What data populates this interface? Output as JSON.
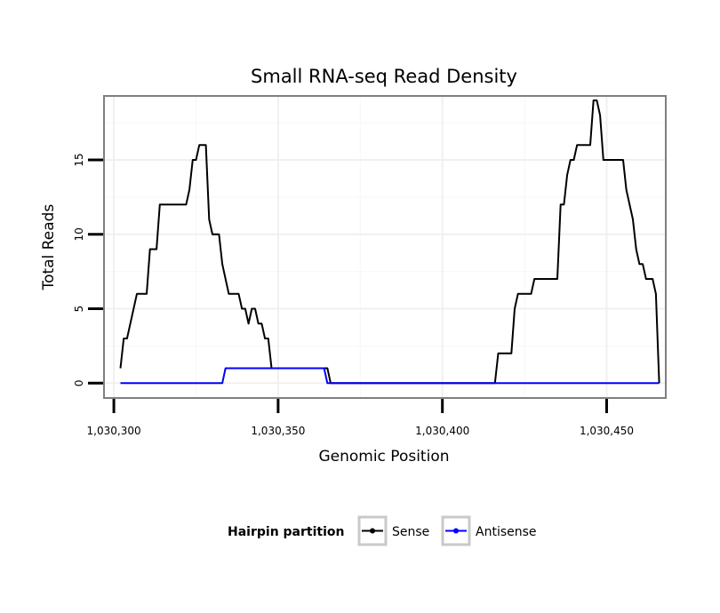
{
  "chart_data": {
    "type": "line",
    "title": "Small RNA-seq Read Density",
    "xlabel": "Genomic Position",
    "ylabel": "Total Reads",
    "xlim": [
      1030297,
      1030468
    ],
    "ylim": [
      -1,
      19.3
    ],
    "x_ticks": [
      1030300,
      1030350,
      1030400,
      1030450
    ],
    "x_tick_labels": [
      "1,030,300",
      "1,030,350",
      "1,030,400",
      "1,030,450"
    ],
    "y_ticks": [
      0,
      5,
      10,
      15
    ],
    "y_tick_labels": [
      "0",
      "5",
      "10",
      "15"
    ],
    "grid": true,
    "legend": {
      "title": "Hairpin partition",
      "position": "bottom",
      "entries": [
        {
          "name": "Sense",
          "color": "#000000"
        },
        {
          "name": "Antisense",
          "color": "#0000ff"
        }
      ]
    },
    "series": [
      {
        "name": "Sense",
        "color": "#000000",
        "points": [
          [
            1030302,
            1
          ],
          [
            1030303,
            3
          ],
          [
            1030304,
            3
          ],
          [
            1030305,
            4
          ],
          [
            1030306,
            5
          ],
          [
            1030307,
            6
          ],
          [
            1030310,
            6
          ],
          [
            1030311,
            9
          ],
          [
            1030313,
            9
          ],
          [
            1030314,
            12
          ],
          [
            1030322,
            12
          ],
          [
            1030323,
            13
          ],
          [
            1030324,
            15
          ],
          [
            1030325,
            15
          ],
          [
            1030326,
            16
          ],
          [
            1030328,
            16
          ],
          [
            1030329,
            11
          ],
          [
            1030330,
            10
          ],
          [
            1030332,
            10
          ],
          [
            1030333,
            8
          ],
          [
            1030335,
            6
          ],
          [
            1030338,
            6
          ],
          [
            1030339,
            5
          ],
          [
            1030340,
            5
          ],
          [
            1030341,
            4
          ],
          [
            1030342,
            5
          ],
          [
            1030343,
            5
          ],
          [
            1030344,
            4
          ],
          [
            1030345,
            4
          ],
          [
            1030346,
            3
          ],
          [
            1030347,
            3
          ],
          [
            1030348,
            1
          ],
          [
            1030365,
            1
          ],
          [
            1030366,
            0
          ],
          [
            1030416,
            0
          ],
          [
            1030417,
            2
          ],
          [
            1030421,
            2
          ],
          [
            1030422,
            5
          ],
          [
            1030423,
            6
          ],
          [
            1030427,
            6
          ],
          [
            1030428,
            7
          ],
          [
            1030435,
            7
          ],
          [
            1030436,
            12
          ],
          [
            1030437,
            12
          ],
          [
            1030438,
            14
          ],
          [
            1030439,
            15
          ],
          [
            1030440,
            15
          ],
          [
            1030441,
            16
          ],
          [
            1030445,
            16
          ],
          [
            1030446,
            19
          ],
          [
            1030447,
            19
          ],
          [
            1030448,
            18
          ],
          [
            1030449,
            15
          ],
          [
            1030455,
            15
          ],
          [
            1030456,
            13
          ],
          [
            1030458,
            11
          ],
          [
            1030459,
            9
          ],
          [
            1030460,
            8
          ],
          [
            1030461,
            8
          ],
          [
            1030462,
            7
          ],
          [
            1030464,
            7
          ],
          [
            1030465,
            6
          ],
          [
            1030466,
            0
          ]
        ]
      },
      {
        "name": "Antisense",
        "color": "#0000ff",
        "points": [
          [
            1030302,
            0
          ],
          [
            1030333,
            0
          ],
          [
            1030334,
            1
          ],
          [
            1030364,
            1
          ],
          [
            1030365,
            0
          ],
          [
            1030466,
            0
          ]
        ]
      }
    ]
  }
}
